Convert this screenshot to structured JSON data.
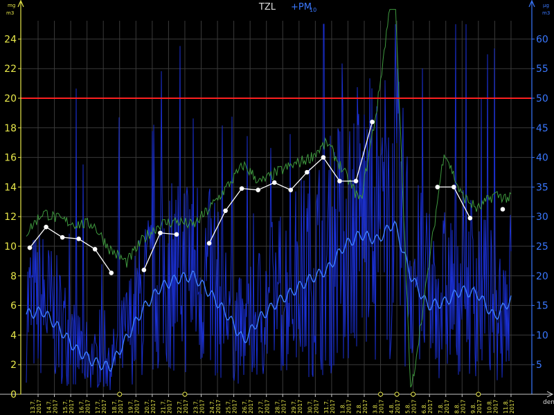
{
  "header": {
    "title_main": "TZL",
    "title_plus": "+PM",
    "title_sub": "10"
  },
  "left_axis": {
    "unit_top": "mg",
    "unit_bottom": "m3"
  },
  "right_axis": {
    "unit_top": "μg",
    "unit_bottom": "m3"
  },
  "x_axis_label": "den",
  "colors": {
    "background": "#000000",
    "grid": "#3a3a3a",
    "left_axis": "#e8e84a",
    "right_axis": "#3a78ff",
    "tzl_hourly": "#3f9a3f",
    "tzl_daily": "#ffffff",
    "limit": "#ff2020",
    "pm10_raw": "#1a2fd0",
    "pm10_smooth": "#3f7fff"
  },
  "chart_data": {
    "type": "line",
    "title": "TZL +PM10",
    "xlabel": "den",
    "ylabel_left": "mg/m3",
    "ylabel_right": "μg/m3",
    "ylim_left": [
      0,
      25
    ],
    "ylim_right": [
      0,
      62.5
    ],
    "left_ticks": [
      "0",
      "2",
      "4",
      "6",
      "8",
      "10",
      "12",
      "14",
      "16",
      "18",
      "20",
      "22",
      "24"
    ],
    "right_ticks": [
      "5",
      "10",
      "15",
      "20",
      "25",
      "30",
      "35",
      "40",
      "45",
      "50",
      "55",
      "60"
    ],
    "grid": true,
    "categories": [
      "13.7.2017",
      "14.7.2017",
      "15.7.2017",
      "16.7.2017",
      "17.7.2017",
      "18.7.2017",
      "19.7.2017",
      "20.7.2017",
      "21.7.2017",
      "22.7.2017",
      "23.7.2017",
      "24.7.2017",
      "25.7.2017",
      "26.7.2017",
      "27.7.2017",
      "28.7.2017",
      "29.7.2017",
      "30.7.2017",
      "31.7.2017",
      "1.8.2017",
      "2.8.2017",
      "3.8.2017",
      "4.8.2017",
      "5.8.2017",
      "6.8.2017",
      "7.8.2017",
      "8.8.2017",
      "9.8.2017",
      "10.8.2017",
      "11.8.2017"
    ],
    "limit_line": {
      "axis": "left",
      "value": 20
    },
    "missing_day_markers": [
      "18.7.2017",
      "22.7.2017",
      "3.8.2017",
      "4.8.2017",
      "5.8.2017",
      "9.8.2017"
    ],
    "series": [
      {
        "kind": "daily_average",
        "axis": "left",
        "values": [
          9.9,
          11.3,
          10.6,
          10.5,
          9.8,
          8.2,
          null,
          8.4,
          10.9,
          10.8,
          null,
          10.2,
          12.4,
          13.9,
          13.8,
          14.3,
          13.8,
          15.0,
          16.0,
          14.4,
          14.4,
          18.4,
          null,
          null,
          null,
          14.0,
          14.0,
          11.9,
          null,
          12.5
        ]
      },
      {
        "kind": "hourly",
        "axis": "left",
        "values": [
          10.9,
          12.3,
          11.8,
          11.5,
          11.5,
          9.8,
          8.9,
          10.5,
          11.5,
          11.7,
          11.4,
          12.6,
          14.0,
          15.5,
          14.3,
          15.0,
          15.5,
          16.0,
          17.0,
          15.0,
          13.0,
          19.5,
          28.5,
          0.0,
          8.0,
          16.5,
          13.5,
          12.5,
          13.5,
          13.2
        ]
      },
      {
        "kind": "daily_smoothed",
        "axis": "right",
        "values": [
          13.5,
          14.0,
          11.0,
          7.5,
          5.5,
          4.5,
          9.5,
          14.5,
          18.0,
          19.5,
          20.0,
          17.0,
          13.5,
          9.0,
          13.0,
          15.5,
          17.5,
          19.5,
          21.0,
          25.0,
          27.0,
          26.0,
          29.0,
          20.0,
          15.0,
          15.5,
          17.5,
          17.0,
          13.0,
          16.0
        ]
      }
    ]
  }
}
